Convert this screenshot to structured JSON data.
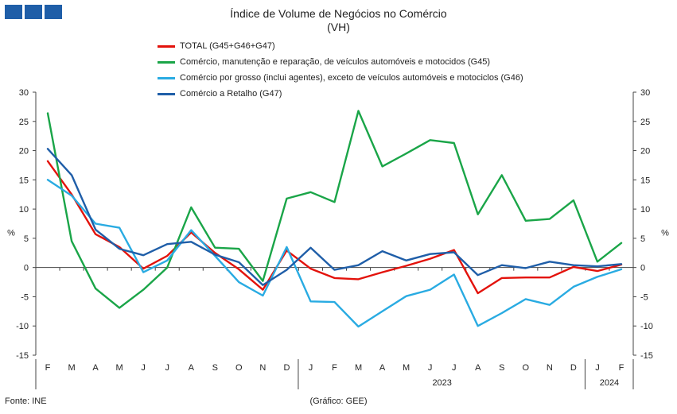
{
  "logo": {
    "icon": "ine-logo-squares"
  },
  "title": "Índice de Volume de Negócios no Comércio",
  "subtitle": "(VH)",
  "footer": {
    "source": "Fonte: INE",
    "credit": "(Gráfico: GEE)"
  },
  "chart_data": {
    "type": "line",
    "categories": [
      "F",
      "M",
      "A",
      "M",
      "J",
      "J",
      "A",
      "S",
      "O",
      "N",
      "D",
      "J",
      "F",
      "M",
      "A",
      "M",
      "J",
      "J",
      "A",
      "S",
      "O",
      "N",
      "D",
      "J",
      "F"
    ],
    "year_labels": [
      {
        "label": "2023",
        "start": 11,
        "end": 22
      },
      {
        "label": "2024",
        "start": 23,
        "end": 24
      }
    ],
    "ylim": [
      -15,
      30
    ],
    "yticks": [
      -15,
      -10,
      -5,
      0,
      5,
      10,
      15,
      20,
      25,
      30
    ],
    "ylabel_left": "%",
    "ylabel_right": "%",
    "grid": false,
    "legend_position": "top",
    "series": [
      {
        "name": "TOTAL (G45+G46+G47)",
        "color": "#e3120b",
        "values": [
          18.2,
          12.5,
          5.7,
          3.5,
          -0.2,
          2.0,
          6.0,
          2.5,
          -0.3,
          -3.8,
          2.9,
          -0.2,
          -1.8,
          -2.0,
          -0.8,
          0.3,
          1.5,
          3.0,
          -4.4,
          -1.8,
          -1.7,
          -1.7,
          0.1,
          -0.6,
          0.5
        ]
      },
      {
        "name": "Comércio, manutenção e reparação, de veículos automóveis e motocidos (G45)",
        "color": "#1aa548",
        "values": [
          26.4,
          4.5,
          -3.6,
          -6.9,
          -3.8,
          0.0,
          10.3,
          3.4,
          3.2,
          -2.3,
          11.8,
          12.9,
          11.2,
          26.8,
          17.3,
          19.5,
          21.8,
          21.3,
          9.1,
          15.8,
          8.0,
          8.3,
          11.5,
          1.0,
          4.2
        ]
      },
      {
        "name": "Comércio por grosso (inclui agentes), exceto de veículos automóveis e motociclos (G46)",
        "color": "#29abe2",
        "values": [
          15.0,
          12.3,
          7.5,
          6.8,
          -0.8,
          1.2,
          6.4,
          2.0,
          -2.5,
          -4.8,
          3.5,
          -5.8,
          -5.9,
          -10.1,
          -7.5,
          -4.9,
          -3.8,
          -1.2,
          -10.0,
          -7.8,
          -5.4,
          -6.4,
          -3.3,
          -1.6,
          -0.3
        ]
      },
      {
        "name": "Comércio a Retalho (G47)",
        "color": "#1f5ea8",
        "values": [
          20.3,
          15.8,
          6.5,
          3.2,
          2.1,
          4.0,
          4.4,
          2.2,
          0.9,
          -3.0,
          -0.4,
          3.4,
          -0.4,
          0.4,
          2.8,
          1.2,
          2.3,
          2.6,
          -1.3,
          0.4,
          -0.1,
          1.0,
          0.4,
          0.2,
          0.6
        ]
      }
    ]
  }
}
